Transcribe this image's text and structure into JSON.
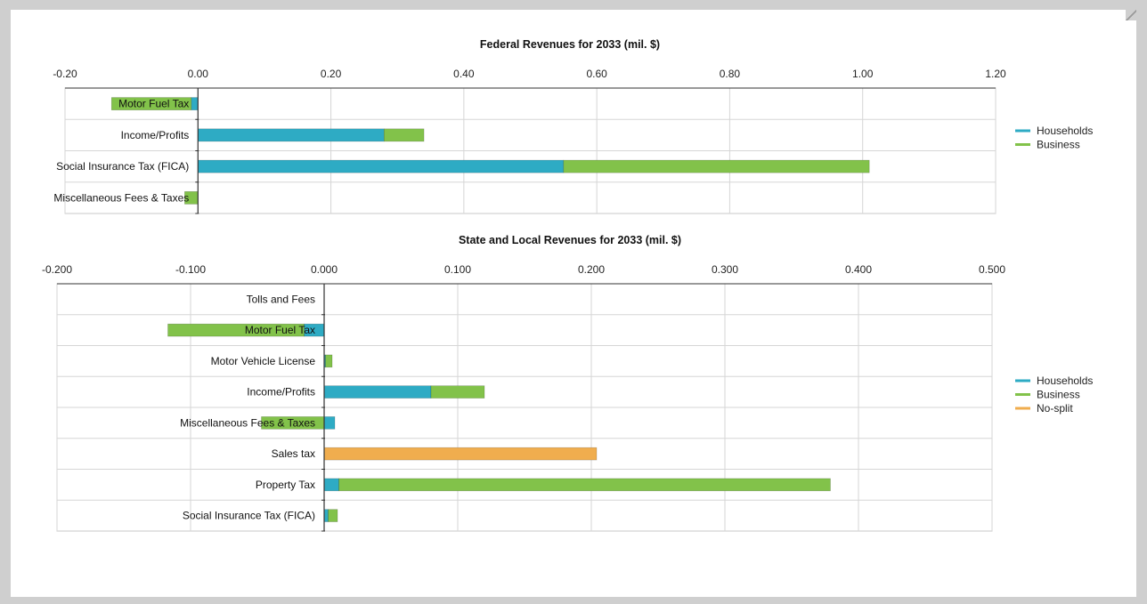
{
  "chart_data": [
    {
      "type": "bar",
      "orientation": "horizontal",
      "stacked": true,
      "title": "Federal Revenues for 2033 (mil. $)",
      "xlim": [
        -0.2,
        1.2
      ],
      "x_ticks": [
        "-0.20",
        "0.00",
        "0.20",
        "0.40",
        "0.60",
        "0.80",
        "1.00",
        "1.20"
      ],
      "x_tick_values": [
        -0.2,
        0,
        0.2,
        0.4,
        0.6,
        0.8,
        1.0,
        1.2
      ],
      "categories": [
        "Motor Fuel Tax",
        "Income/Profits",
        "Social Insurance Tax (FICA)",
        "Miscellaneous Fees & Taxes"
      ],
      "series": [
        {
          "name": "Households",
          "color": "#2eabc4",
          "values": [
            -0.01,
            0.28,
            0.55,
            0.0
          ]
        },
        {
          "name": "Business",
          "color": "#82c24a",
          "values": [
            -0.12,
            0.06,
            0.46,
            -0.02
          ]
        }
      ],
      "legend": "right",
      "grid": true
    },
    {
      "type": "bar",
      "orientation": "horizontal",
      "stacked": true,
      "title": "State and Local Revenues for 2033 (mil. $)",
      "xlim": [
        -0.2,
        0.5
      ],
      "x_ticks": [
        "-0.200",
        "-0.100",
        "0.000",
        "0.100",
        "0.200",
        "0.300",
        "0.400",
        "0.500"
      ],
      "x_tick_values": [
        -0.2,
        -0.1,
        0,
        0.1,
        0.2,
        0.3,
        0.4,
        0.5
      ],
      "categories": [
        "Tolls and Fees",
        "Motor Fuel Tax",
        "Motor Vehicle License",
        "Income/Profits",
        "Miscellaneous Fees & Taxes",
        "Sales tax",
        "Property Tax",
        "Social Insurance Tax (FICA)"
      ],
      "series": [
        {
          "name": "Households",
          "color": "#2eabc4",
          "values": [
            0.0,
            -0.015,
            0.001,
            0.08,
            0.008,
            0.0,
            0.011,
            0.003
          ]
        },
        {
          "name": "Business",
          "color": "#82c24a",
          "values": [
            0.0,
            -0.102,
            0.005,
            0.04,
            -0.047,
            0.0,
            0.368,
            0.007
          ]
        },
        {
          "name": "No-split",
          "color": "#f0ad4e",
          "values": [
            0.0,
            0.0,
            0.0,
            0.0,
            0.0,
            0.204,
            0.0,
            0.0
          ]
        }
      ],
      "legend": "right",
      "grid": true
    }
  ]
}
